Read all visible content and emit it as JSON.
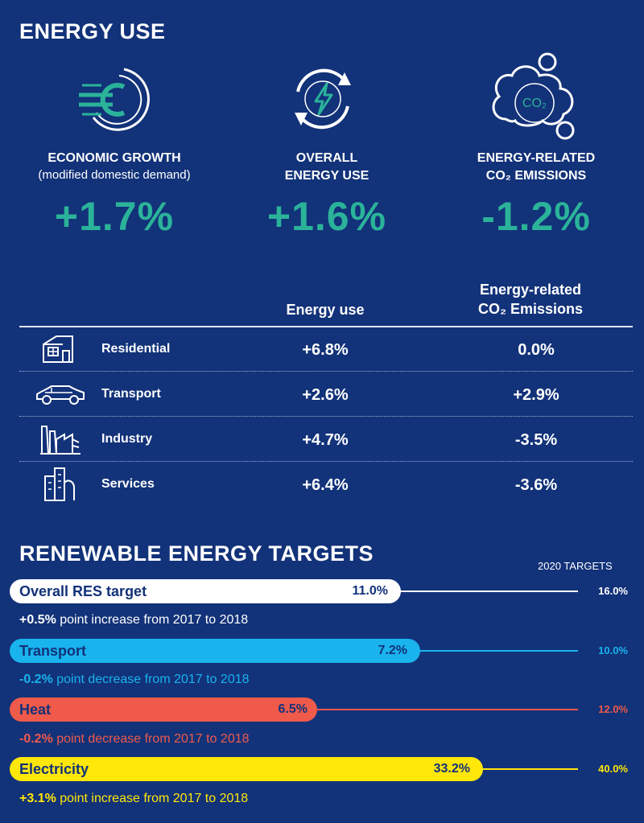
{
  "energy_use": {
    "title": "ENERGY USE",
    "kpis": [
      {
        "icon": "euro-icon",
        "label_line1": "ECONOMIC GROWTH",
        "label_line2": "(modified domestic demand)",
        "value": "+1.7%"
      },
      {
        "icon": "energy-cycle-icon",
        "label_line1": "OVERALL",
        "label_line2": "ENERGY USE",
        "value": "+1.6%"
      },
      {
        "icon": "co2-cloud-icon",
        "label_line1": "ENERGY-RELATED",
        "label_line2": "CO₂ EMISSIONS",
        "value": "-1.2%",
        "icon_text": "CO₂"
      }
    ],
    "table": {
      "col_energy": "Energy use",
      "col_emissions_line1": "Energy-related",
      "col_emissions_line2": "CO₂ Emissions",
      "rows": [
        {
          "icon": "house-icon",
          "sector": "Residential",
          "energy": "+6.8%",
          "emissions": "0.0%"
        },
        {
          "icon": "car-icon",
          "sector": "Transport",
          "energy": "+2.6%",
          "emissions": "+2.9%"
        },
        {
          "icon": "factory-icon",
          "sector": "Industry",
          "energy": "+4.7%",
          "emissions": "-3.5%"
        },
        {
          "icon": "office-building-icon",
          "sector": "Services",
          "energy": "+6.4%",
          "emissions": "-3.6%"
        }
      ]
    }
  },
  "renewables": {
    "title": "RENEWABLE ENERGY TARGETS",
    "targets_header": "2020 TARGETS",
    "bars": [
      {
        "name": "Overall RES target",
        "value": "11.0%",
        "target": "16.0%",
        "note_value": "+0.5%",
        "note_text": " point increase from 2017 to 2018",
        "color": "#ffffff",
        "text_color": "#123279",
        "note_color": "#ffffff"
      },
      {
        "name": "Transport",
        "value": "7.2%",
        "target": "10.0%",
        "note_value": "-0.2%",
        "note_text": " point decrease from 2017 to 2018",
        "color": "#19b3ee",
        "text_color": "#123279",
        "note_color": "#19b3ee"
      },
      {
        "name": "Heat",
        "value": "6.5%",
        "target": "12.0%",
        "note_value": "-0.2%",
        "note_text": " point decrease from 2017 to 2018",
        "color": "#ef5a4b",
        "text_color": "#123279",
        "note_color": "#ef5a4b"
      },
      {
        "name": "Electricity",
        "value": "33.2%",
        "target": "40.0%",
        "note_value": "+3.1%",
        "note_text": " point increase from 2017 to 2018",
        "color": "#ffe70a",
        "text_color": "#123279",
        "note_color": "#ffe70a"
      }
    ]
  }
}
